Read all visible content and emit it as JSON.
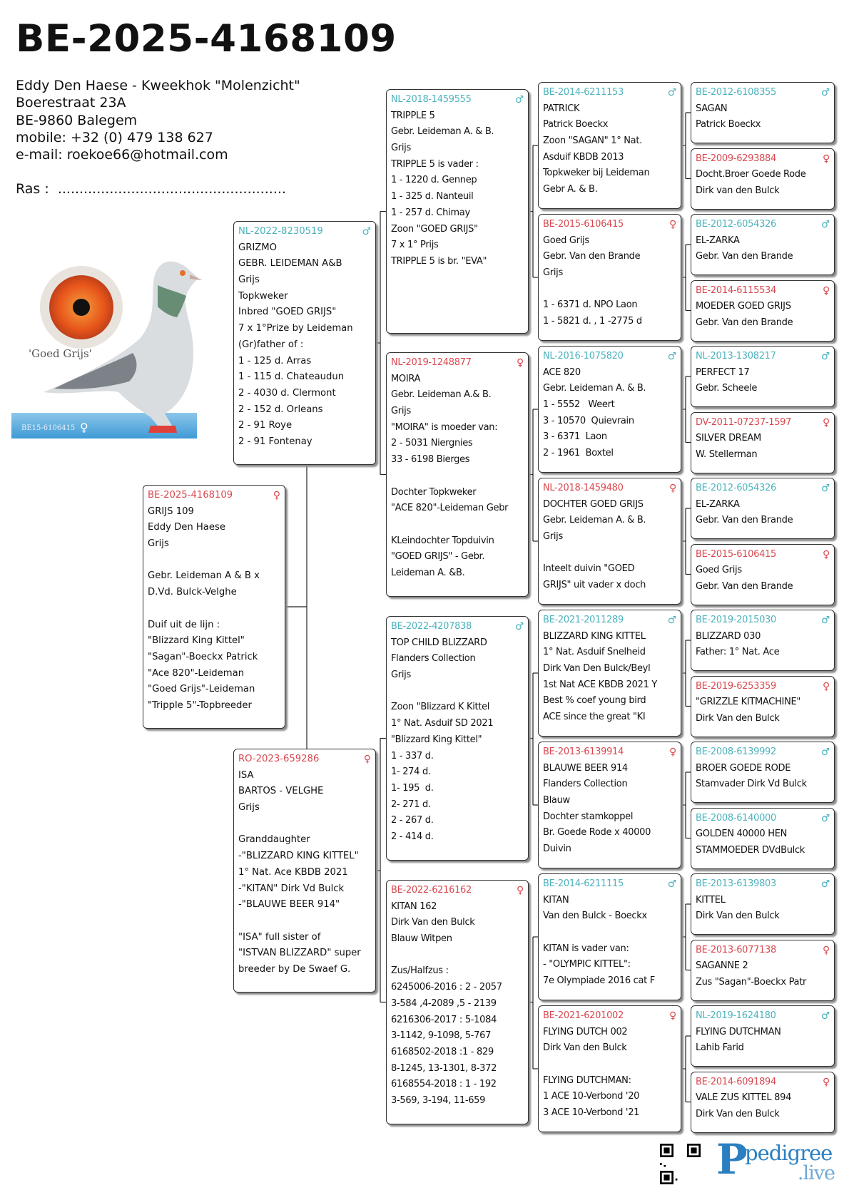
{
  "header": {
    "ring": "BE-2025-4168109",
    "contact": [
      "Eddy Den Haese - Kweekhok \"Molenzicht\"",
      "Boerestraat 23A",
      "BE-9860 Balegem",
      "mobile: +32 (0) 479 138 627",
      "e-mail: roekoe66@hotmail.com"
    ],
    "ras": "Ras :  ....................................................."
  },
  "photo": {
    "caption": "'Goed Grijs'",
    "band_text": "BE15-6106415",
    "band_sex": "♀"
  },
  "colors": {
    "male": "#4cb3bd",
    "female": "#d9484f",
    "brand": "#2a7fc1"
  },
  "pedigree": {
    "gen0": [
      {
        "ring": "BE-2025-4168109",
        "sex": "female",
        "lines": [
          "GRIJS 109",
          "Eddy Den Haese",
          "Grijs",
          "",
          "Gebr. Leideman A & B x",
          "D.Vd. Bulck-Velghe",
          "",
          "Duif uit de lijn :",
          "\"Blizzard King Kittel\"",
          "\"Sagan\"-Boeckx Patrick",
          "\"Ace 820\"-Leideman",
          "\"Goed Grijs\"-Leideman",
          "\"Tripple 5\"-Topbreeder"
        ]
      }
    ],
    "gen1": [
      {
        "ring": "NL-2022-8230519",
        "sex": "male",
        "lines": [
          "GRIZMO",
          "GEBR. LEIDEMAN A&B",
          "Grijs",
          "Topkweker",
          "Inbred \"GOED GRIJS\"",
          "7 x 1°Prize by Leideman",
          "(Gr)father of :",
          "1 - 125 d. Arras",
          "1 - 115 d. Chateaudun",
          "2 - 4030 d. Clermont",
          "2 - 152 d. Orleans",
          "2 - 91 Roye",
          "2 - 91 Fontenay"
        ]
      },
      {
        "ring": "RO-2023-659286",
        "sex": "female",
        "lines": [
          "ISA",
          "BARTOS - VELGHE",
          "Grijs",
          "",
          "Granddaughter",
          "-\"BLIZZARD KING KITTEL\"",
          "1° Nat. Ace KBDB 2021",
          "-\"KITAN\" Dirk Vd Bulck",
          "-\"BLAUWE BEER 914\"",
          "",
          "\"ISA\" full sister of",
          "\"ISTVAN BLIZZARD\" super",
          "breeder by De Swaef G."
        ]
      }
    ],
    "gen2": [
      {
        "ring": "NL-2018-1459555",
        "sex": "male",
        "lines": [
          "TRIPPLE 5",
          "Gebr. Leideman A. & B.",
          "Grijs",
          "TRIPPLE 5 is vader :",
          "1 - 1220 d. Gennep",
          "1 - 325 d. Nanteuil",
          "1 - 257 d. Chimay",
          "Zoon \"GOED GRIJS\"",
          "7 x 1° Prijs",
          "TRIPPLE 5 is br. \"EVA\""
        ]
      },
      {
        "ring": "NL-2019-1248877",
        "sex": "female",
        "lines": [
          "MOIRA",
          "Gebr. Leideman A.& B.",
          "Grijs",
          "\"MOIRA\" is moeder van:",
          "2 - 5031 Niergnies",
          "33 - 6198 Bierges",
          "",
          "Dochter Topkweker",
          "\"ACE 820\"-Leideman Gebr",
          "",
          "KLeindochter Topduivin",
          "\"GOED GRIJS\" - Gebr.",
          "Leideman A. &B."
        ]
      },
      {
        "ring": "BE-2022-4207838",
        "sex": "male",
        "lines": [
          "TOP CHILD BLIZZARD",
          "Flanders Collection",
          "Grijs",
          "",
          "Zoon \"Blizzard K Kittel",
          "1° Nat. Asduif SD 2021",
          "\"Blizzard King Kittel\"",
          "1 - 337 d.",
          "1- 274 d.",
          "1- 195  d.",
          "2- 271 d.",
          "2 - 267 d.",
          "2 - 414 d."
        ]
      },
      {
        "ring": "BE-2022-6216162",
        "sex": "female",
        "lines": [
          "KITAN 162",
          "Dirk Van den Bulck",
          "Blauw Witpen",
          "",
          "Zus/Halfzus :",
          "6245006-2016 : 2 - 2057",
          "3-584 ,4-2089 ,5 - 2139",
          "6216306-2017 : 5-1084",
          "3-1142, 9-1098, 5-767",
          "6168502-2018 :1 - 829",
          "8-1245, 13-1301, 8-372",
          "6168554-2018 : 1 - 192",
          "3-569, 3-194, 11-659"
        ]
      }
    ],
    "gen3": [
      {
        "ring": "BE-2014-6211153",
        "sex": "male",
        "lines": [
          "PATRICK",
          "Patrick Boeckx",
          "Zoon \"SAGAN\" 1° Nat.",
          "Asduif KBDB 2013",
          "Topkweker bij Leideman",
          "Gebr A. & B."
        ]
      },
      {
        "ring": "BE-2015-6106415",
        "sex": "female",
        "lines": [
          "Goed Grijs",
          "Gebr. Van den Brande",
          "Grijs",
          "",
          "1 - 6371 d. NPO Laon",
          "1 - 5821 d. , 1 -2775 d"
        ]
      },
      {
        "ring": "NL-2016-1075820",
        "sex": "male",
        "lines": [
          "ACE 820",
          "Gebr. Leideman A. & B.",
          "1 - 5552   Weert",
          "3 - 10570  Quievrain",
          "3 - 6371  Laon",
          "2 - 1961  Boxtel"
        ]
      },
      {
        "ring": "NL-2018-1459480",
        "sex": "female",
        "lines": [
          "DOCHTER GOED GRIJS",
          "Gebr. Leideman A. & B.",
          "Grijs",
          "",
          "Inteelt duivin \"GOED",
          "GRIJS\" uit vader x doch"
        ]
      },
      {
        "ring": "BE-2021-2011289",
        "sex": "male",
        "lines": [
          "BLIZZARD KING KITTEL",
          "1° Nat. Asduif Snelheid",
          "Dirk Van Den Bulck/Beyl",
          "1st Nat ACE KBDB 2021 Y",
          "Best % coef young bird",
          "ACE since the great \"KI"
        ]
      },
      {
        "ring": "BE-2013-6139914",
        "sex": "female",
        "lines": [
          "BLAUWE BEER 914",
          "Flanders Collection",
          "Blauw",
          "Dochter stamkoppel",
          "Br. Goede Rode x 40000",
          "Duivin"
        ]
      },
      {
        "ring": "BE-2014-6211115",
        "sex": "male",
        "lines": [
          "KITAN",
          "Van den Bulck - Boeckx",
          "",
          "KITAN is vader van:",
          "- \"OLYMPIC KITTEL\":",
          "7e Olympiade 2016 cat F"
        ]
      },
      {
        "ring": "BE-2021-6201002",
        "sex": "female",
        "lines": [
          "FLYING DUTCH 002",
          "Dirk Van den Bulck",
          "",
          "FLYING DUTCHMAN:",
          "1 ACE 10-Verbond '20",
          "3 ACE 10-Verbond '21"
        ]
      }
    ],
    "gen4": [
      {
        "ring": "BE-2012-6108355",
        "sex": "male",
        "lines": [
          "SAGAN",
          "Patrick Boeckx"
        ]
      },
      {
        "ring": "BE-2009-6293884",
        "sex": "female",
        "lines": [
          "Docht.Broer Goede Rode",
          "Dirk van den Bulck"
        ]
      },
      {
        "ring": "BE-2012-6054326",
        "sex": "male",
        "lines": [
          "EL-ZARKA",
          "Gebr. Van den Brande"
        ]
      },
      {
        "ring": "BE-2014-6115534",
        "sex": "female",
        "lines": [
          "MOEDER GOED GRIJS",
          "Gebr. Van den Brande"
        ]
      },
      {
        "ring": "NL-2013-1308217",
        "sex": "male",
        "lines": [
          "PERFECT 17",
          "Gebr. Scheele"
        ]
      },
      {
        "ring": "DV-2011-07237-1597",
        "sex": "female",
        "lines": [
          "SILVER DREAM",
          "W. Stellerman"
        ]
      },
      {
        "ring": "BE-2012-6054326",
        "sex": "male",
        "lines": [
          "EL-ZARKA",
          "Gebr. Van den Brande"
        ]
      },
      {
        "ring": "BE-2015-6106415",
        "sex": "female",
        "lines": [
          "Goed Grijs",
          "Gebr. Van den Brande"
        ]
      },
      {
        "ring": "BE-2019-2015030",
        "sex": "male",
        "lines": [
          "BLIZZARD 030",
          "Father: 1° Nat. Ace"
        ]
      },
      {
        "ring": "BE-2019-6253359",
        "sex": "female",
        "lines": [
          "\"GRIZZLE KITMACHINE\"",
          "Dirk Van den Bulck"
        ]
      },
      {
        "ring": "BE-2008-6139992",
        "sex": "male",
        "lines": [
          "BROER GOEDE RODE",
          "Stamvader Dirk Vd Bulck"
        ]
      },
      {
        "ring": "BE-2008-6140000",
        "sex": "male",
        "lines": [
          "GOLDEN 40000 HEN",
          "STAMMOEDER DVdBulck"
        ]
      },
      {
        "ring": "BE-2013-6139803",
        "sex": "male",
        "lines": [
          "KITTEL",
          "Dirk Van den Bulck"
        ]
      },
      {
        "ring": "BE-2013-6077138",
        "sex": "female",
        "lines": [
          "SAGANNE 2",
          "Zus \"Sagan\"-Boeckx Patr"
        ]
      },
      {
        "ring": "NL-2019-1624180",
        "sex": "male",
        "lines": [
          "FLYING DUTCHMAN",
          "Lahib Farid"
        ]
      },
      {
        "ring": "BE-2014-6091894",
        "sex": "female",
        "lines": [
          "VALE ZUS KITTEL 894",
          "Dirk Van den Bulck"
        ]
      }
    ]
  },
  "footer": {
    "logo_word": "pedigree",
    "logo_suffix": ".live",
    "qr_icon": "qr-code-icon"
  }
}
